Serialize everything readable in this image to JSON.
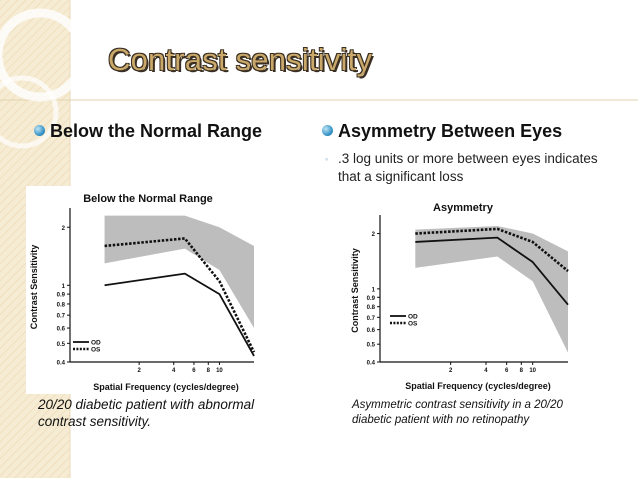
{
  "slide": {
    "title": "Contrast sensitivity",
    "left_bullet": "Below the Normal Range",
    "right_bullet": "Asymmetry Between Eyes",
    "right_sub": ".3 log units or more between eyes indicates that a significant loss",
    "left_caption": "20/20 diabetic patient with abnormal contrast sensitivity.",
    "right_caption": "Asymmetric contrast sensitivity in a 20/20 diabetic patient with no retinopathy"
  },
  "colors": {
    "title": "#c9a86a",
    "bullet_dot": "#2f90c4",
    "band": "#bdbdbd"
  },
  "chart_data": [
    {
      "type": "line",
      "title": "Below the Normal Range",
      "xlabel": "Spatial Frequency (cycles/degree)",
      "ylabel": "Contrast Sensitivity",
      "x_ticks": [
        "2",
        "4",
        "6",
        "8",
        "10"
      ],
      "y_ticks": [
        "2",
        "1",
        "0.9",
        "0.8",
        "0.7",
        "0.6",
        "0.5",
        "0.4"
      ],
      "x_range": [
        0.5,
        20
      ],
      "y_range": [
        0.4,
        2.4
      ],
      "normal_band": {
        "x": [
          1,
          5,
          10,
          20
        ],
        "upper": [
          2.3,
          2.3,
          2.0,
          1.6
        ],
        "lower": [
          1.3,
          1.55,
          1.2,
          0.6
        ]
      },
      "series": [
        {
          "name": "OD",
          "style": "solid",
          "x": [
            1,
            5,
            10,
            20
          ],
          "y": [
            1.0,
            1.15,
            0.9,
            0.43
          ]
        },
        {
          "name": "OS",
          "style": "dotted",
          "x": [
            1,
            5,
            10,
            20
          ],
          "y": [
            1.6,
            1.75,
            1.05,
            0.45
          ]
        }
      ],
      "legend": [
        "OD",
        "OS"
      ]
    },
    {
      "type": "line",
      "title": "Asymmetry",
      "xlabel": "Spatial Frequency (cycles/degree)",
      "ylabel": "Contrast Sensitivity",
      "x_ticks": [
        "2",
        "4",
        "6",
        "8",
        "10"
      ],
      "y_ticks": [
        "2",
        "1",
        "0.9",
        "0.8",
        "0.7",
        "0.6",
        "0.5",
        "0.4"
      ],
      "x_range": [
        0.5,
        20
      ],
      "y_range": [
        0.4,
        2.4
      ],
      "normal_band": {
        "x": [
          1,
          5,
          10,
          20
        ],
        "upper": [
          2.1,
          2.2,
          2.0,
          1.6
        ],
        "lower": [
          1.3,
          1.5,
          1.1,
          0.45
        ]
      },
      "series": [
        {
          "name": "OD",
          "style": "solid",
          "x": [
            1,
            5,
            10,
            20
          ],
          "y": [
            1.8,
            1.9,
            1.4,
            0.82
          ]
        },
        {
          "name": "OS",
          "style": "dotted",
          "x": [
            1,
            5,
            10,
            20
          ],
          "y": [
            2.0,
            2.12,
            1.8,
            1.25
          ]
        }
      ],
      "legend": [
        "OD",
        "OS"
      ]
    }
  ]
}
